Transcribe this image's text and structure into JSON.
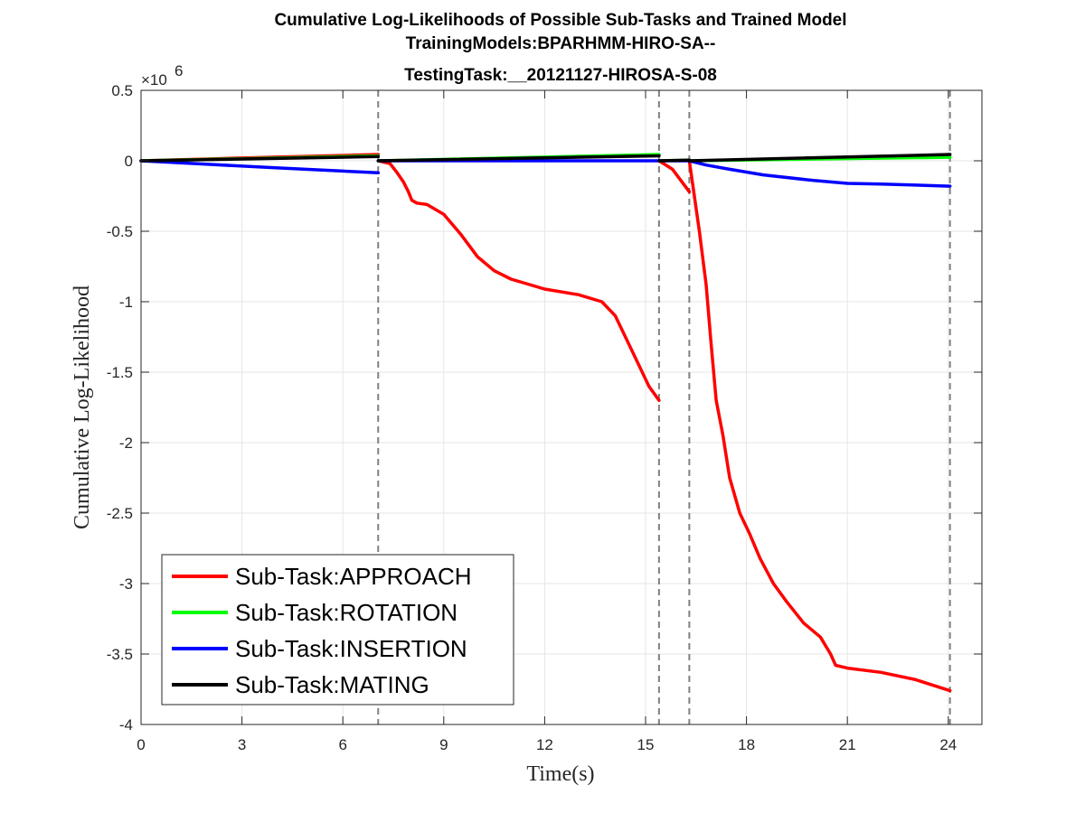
{
  "chart_data": {
    "type": "line",
    "title": [
      "Cumulative Log-Likelihoods of Possible Sub-Tasks and Trained Model",
      "TrainingModels:BPARHMM-HIRO-SA--",
      "TestingTask:__20121127-HIROSA-S-08"
    ],
    "xlabel": "Time(s)",
    "ylabel": "Cumulative Log-Likelihood",
    "y_exponent_label": "×10",
    "y_exponent_power": "6",
    "xlim": [
      0,
      25
    ],
    "ylim": [
      -4,
      0.5
    ],
    "x_ticks": [
      0,
      3,
      6,
      9,
      12,
      15,
      18,
      21,
      24
    ],
    "x_tick_labels": [
      "0",
      "3",
      "6",
      "9",
      "12",
      "15",
      "18",
      "21",
      "24"
    ],
    "y_ticks": [
      0.5,
      0,
      -0.5,
      -1,
      -1.5,
      -2,
      -2.5,
      -3,
      -3.5,
      -4
    ],
    "y_tick_labels": [
      "0.5",
      "0",
      "-0.5",
      "-1",
      "-1.5",
      "-2",
      "-2.5",
      "-3",
      "-3.5",
      "-4"
    ],
    "grid": true,
    "legend_position": "bottom-left",
    "vlines": [
      7.05,
      15.4,
      16.3,
      24.05
    ],
    "series": [
      {
        "name": "Sub-Task:APPROACH",
        "color": "#ff0000",
        "segments": [
          [
            [
              0,
              0
            ],
            [
              3,
              0.02
            ],
            [
              7.05,
              0.045
            ]
          ],
          [
            [
              7.05,
              0
            ],
            [
              7.4,
              -0.02
            ],
            [
              7.6,
              -0.08
            ],
            [
              7.8,
              -0.15
            ],
            [
              7.95,
              -0.22
            ],
            [
              8.05,
              -0.28
            ],
            [
              8.2,
              -0.3
            ],
            [
              8.5,
              -0.31
            ],
            [
              9,
              -0.38
            ],
            [
              9.5,
              -0.52
            ],
            [
              10,
              -0.68
            ],
            [
              10.5,
              -0.78
            ],
            [
              11,
              -0.84
            ],
            [
              12,
              -0.91
            ],
            [
              13,
              -0.95
            ],
            [
              13.7,
              -1.0
            ],
            [
              14.1,
              -1.1
            ],
            [
              14.5,
              -1.3
            ],
            [
              14.9,
              -1.5
            ],
            [
              15.1,
              -1.6
            ],
            [
              15.4,
              -1.7
            ]
          ],
          [
            [
              15.4,
              0
            ],
            [
              15.8,
              -0.06
            ],
            [
              16.3,
              -0.22
            ]
          ],
          [
            [
              16.3,
              0
            ],
            [
              16.6,
              -0.5
            ],
            [
              16.8,
              -0.88
            ],
            [
              16.95,
              -1.3
            ],
            [
              17.1,
              -1.7
            ],
            [
              17.3,
              -1.95
            ],
            [
              17.5,
              -2.25
            ],
            [
              17.8,
              -2.5
            ],
            [
              18.1,
              -2.65
            ],
            [
              18.4,
              -2.82
            ],
            [
              18.8,
              -3.0
            ],
            [
              19.2,
              -3.13
            ],
            [
              19.7,
              -3.28
            ],
            [
              20.2,
              -3.38
            ],
            [
              20.5,
              -3.5
            ],
            [
              20.65,
              -3.58
            ],
            [
              21,
              -3.6
            ],
            [
              22,
              -3.63
            ],
            [
              23,
              -3.68
            ],
            [
              24.05,
              -3.76
            ]
          ]
        ]
      },
      {
        "name": "Sub-Task:ROTATION",
        "color": "#00ff00",
        "segments": [
          [
            [
              0,
              0
            ],
            [
              7.05,
              0.035
            ]
          ],
          [
            [
              7.05,
              0
            ],
            [
              15.4,
              0.045
            ]
          ],
          [
            [
              15.4,
              0
            ],
            [
              16.3,
              0.005
            ]
          ],
          [
            [
              16.3,
              0
            ],
            [
              24.05,
              0.025
            ]
          ]
        ]
      },
      {
        "name": "Sub-Task:INSERTION",
        "color": "#0000ff",
        "segments": [
          [
            [
              0,
              0
            ],
            [
              2,
              -0.025
            ],
            [
              4,
              -0.05
            ],
            [
              7.05,
              -0.085
            ]
          ],
          [
            [
              7.05,
              0
            ],
            [
              15.4,
              0
            ]
          ],
          [
            [
              15.4,
              0
            ],
            [
              16.3,
              0
            ]
          ],
          [
            [
              16.3,
              0
            ],
            [
              16.8,
              -0.03
            ],
            [
              17.5,
              -0.06
            ],
            [
              18.5,
              -0.1
            ],
            [
              20,
              -0.14
            ],
            [
              21,
              -0.16
            ],
            [
              22,
              -0.165
            ],
            [
              24.05,
              -0.18
            ]
          ]
        ]
      },
      {
        "name": "Sub-Task:MATING",
        "color": "#000000",
        "segments": [
          [
            [
              0,
              0
            ],
            [
              7.05,
              0.03
            ]
          ],
          [
            [
              7.05,
              0
            ],
            [
              15.4,
              0.035
            ]
          ],
          [
            [
              15.4,
              0
            ],
            [
              16.3,
              0.005
            ]
          ],
          [
            [
              16.3,
              0
            ],
            [
              24.05,
              0.045
            ]
          ]
        ]
      }
    ]
  }
}
